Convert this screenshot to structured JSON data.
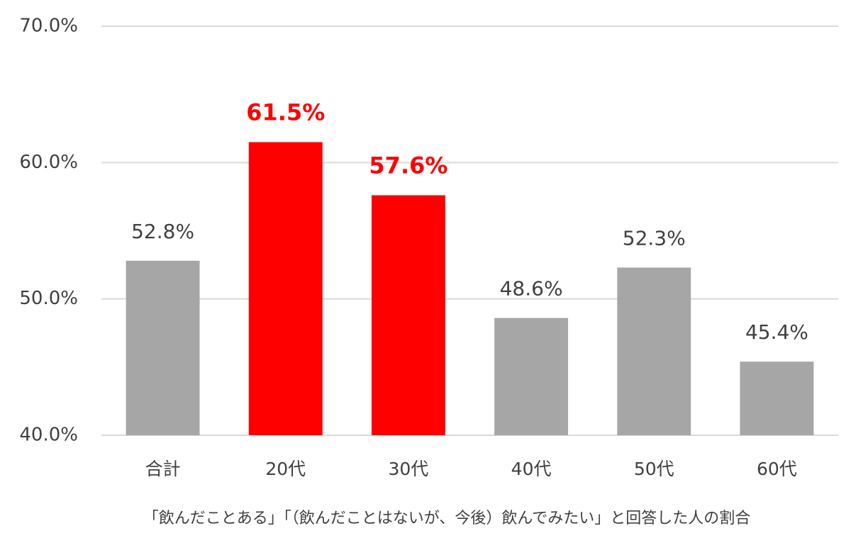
{
  "chart_data": {
    "type": "bar",
    "categories": [
      "合計",
      "20代",
      "30代",
      "40代",
      "50代",
      "60代"
    ],
    "values": [
      52.8,
      61.5,
      57.6,
      48.6,
      52.3,
      45.4
    ],
    "value_labels": [
      "52.8%",
      "61.5%",
      "57.6%",
      "48.6%",
      "52.3%",
      "45.4%"
    ],
    "color": "#a6a6a6",
    "colors": [
      "#a6a6a6",
      "#ff0000",
      "#ff0000",
      "#a6a6a6",
      "#a6a6a6",
      "#a6a6a6"
    ],
    "ylim": [
      40,
      70
    ],
    "yticks": [
      {
        "value": 40,
        "label": "40.0%"
      },
      {
        "value": 50,
        "label": "50.0%"
      },
      {
        "value": 60,
        "label": "60.0%"
      },
      {
        "value": 70,
        "label": "70.0%"
      }
    ],
    "grid": true,
    "x_label": "「飲んだことある」「（飲んだことはないが、今後）飲んでみたい」と回答した人の割合"
  }
}
